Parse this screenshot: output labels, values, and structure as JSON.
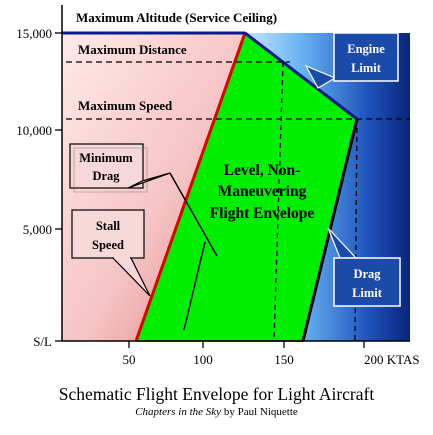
{
  "diagram": {
    "title": "Schematic Flight Envelope for Light Aircraft",
    "subtitle_italic": "Chapters in the Sky",
    "subtitle_rest": "by Paul Niquette",
    "y_ticks": [
      "15,000",
      "10,000",
      "5,000",
      "S/L"
    ],
    "x_ticks": [
      "50",
      "100",
      "150",
      "200 KTAS"
    ],
    "limit_lines": {
      "max_altitude": "Maximum Altitude (Service Ceiling)",
      "max_distance": "Maximum Distance",
      "max_speed": "Maximum Speed"
    },
    "envelope": {
      "line1": "Level,  Non-",
      "line2": "Maneuvering",
      "line3": "Flight Envelope"
    },
    "callouts": {
      "min_drag_1": "Minimum",
      "min_drag_2": "Drag",
      "stall_1": "Stall",
      "stall_2": "Speed",
      "engine_1": "Engine",
      "engine_2": "Limit",
      "drag_1": "Drag",
      "drag_2": "Limit"
    },
    "colors": {
      "envelope_fill": "#00ee00",
      "stall_region": "#f2b6b6",
      "drag_region": "#2a5fc4",
      "callout_blue": "#1c4aa8",
      "callout_pink": "#f6d8d8",
      "stall_line": "#e00000",
      "ceiling_line": "#0a1a8c"
    }
  }
}
